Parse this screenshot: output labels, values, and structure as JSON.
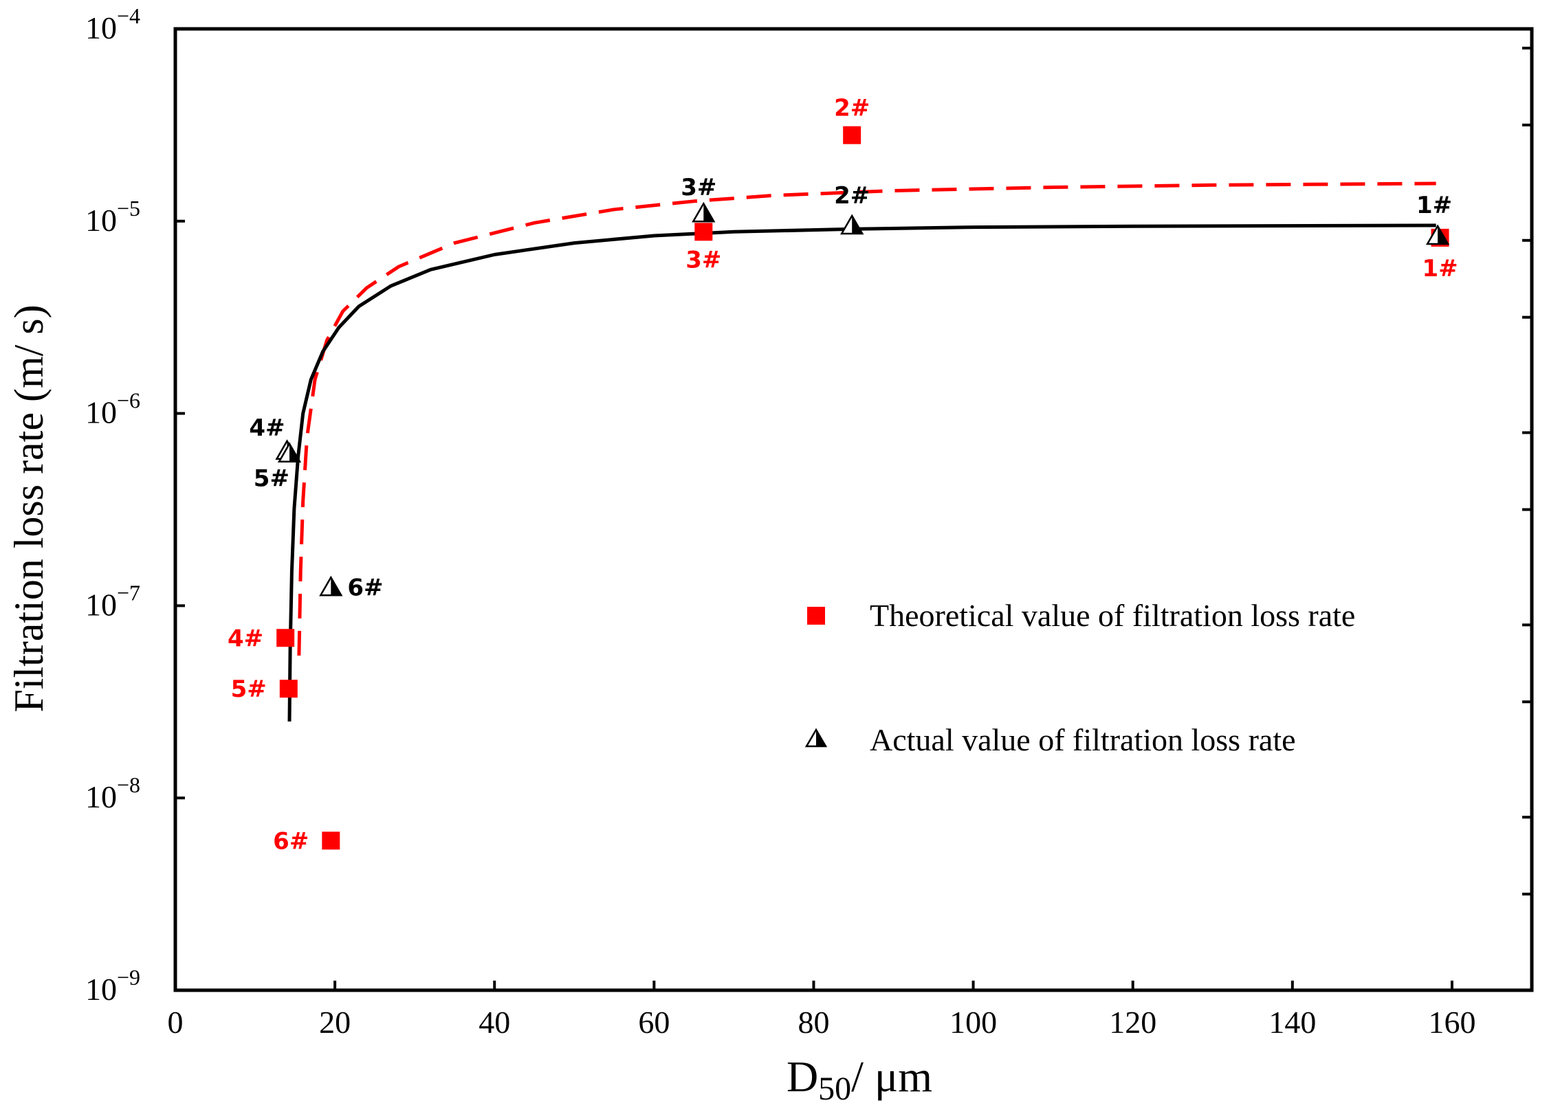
{
  "chart_data": {
    "type": "scatter",
    "title": "",
    "xlabel": "D50/ μm",
    "xlabel_main": "D",
    "xlabel_sub": "50",
    "xlabel_rest": "/ μm",
    "ylabel": "Filtration loss rate (m/ s)",
    "xlim": [
      0,
      170
    ],
    "ylim": [
      1e-09,
      0.0001
    ],
    "yscale": "log",
    "x_ticks": [
      0,
      20,
      40,
      60,
      80,
      100,
      120,
      140,
      160
    ],
    "x_tick_labels": [
      "0",
      "20",
      "40",
      "60",
      "80",
      "100",
      "120",
      "140",
      "160"
    ],
    "y_tick_labels": [
      {
        "base": "10",
        "exp": "−9"
      },
      {
        "base": "10",
        "exp": "−8"
      },
      {
        "base": "10",
        "exp": "−7"
      },
      {
        "base": "10",
        "exp": "−6"
      },
      {
        "base": "10",
        "exp": "−5"
      },
      {
        "base": "10",
        "exp": "−4"
      }
    ],
    "legend": {
      "position": "center-right",
      "entries": [
        "Theoretical value of filtration loss rate",
        "Actual value of filtration loss rate"
      ]
    },
    "series": [
      {
        "name": "Theoretical value of filtration loss rate",
        "marker": "square",
        "color": "#ff0000",
        "points": [
          {
            "label": "1#",
            "x": 158.5,
            "y": 8.2e-06
          },
          {
            "label": "2#",
            "x": 84.8,
            "y": 2.8e-05
          },
          {
            "label": "3#",
            "x": 66.2,
            "y": 8.8e-06
          },
          {
            "label": "4#",
            "x": 13.8,
            "y": 6.8e-08
          },
          {
            "label": "5#",
            "x": 14.2,
            "y": 3.7e-08
          },
          {
            "label": "6#",
            "x": 19.5,
            "y": 6e-09
          }
        ]
      },
      {
        "name": "Actual value of filtration loss rate",
        "marker": "half-filled-triangle",
        "color": "#000000",
        "points": [
          {
            "label": "1#",
            "x": 158.2,
            "y": 8.4e-06
          },
          {
            "label": "2#",
            "x": 84.8,
            "y": 9.5e-06
          },
          {
            "label": "3#",
            "x": 66.2,
            "y": 1.1e-05
          },
          {
            "label": "4#",
            "x": 14.0,
            "y": 6.4e-07
          },
          {
            "label": "5#",
            "x": 14.3,
            "y": 6.2e-07
          },
          {
            "label": "6#",
            "x": 19.5,
            "y": 1.25e-07
          }
        ]
      }
    ],
    "fit_curves": [
      {
        "name": "theoretical fit",
        "style": "dashed",
        "color": "#ff0000",
        "points": [
          [
            15.5,
            5.5e-08
          ],
          [
            15.7,
            1.5e-07
          ],
          [
            16.0,
            3.5e-07
          ],
          [
            16.5,
            7.5e-07
          ],
          [
            17.5,
            1.5e-06
          ],
          [
            19.0,
            2.4e-06
          ],
          [
            21.0,
            3.4e-06
          ],
          [
            24.0,
            4.5e-06
          ],
          [
            28.0,
            5.8e-06
          ],
          [
            35.0,
            7.7e-06
          ],
          [
            45.0,
            9.8e-06
          ],
          [
            55.0,
            1.15e-05
          ],
          [
            65.0,
            1.27e-05
          ],
          [
            75.0,
            1.36e-05
          ],
          [
            90.0,
            1.44e-05
          ],
          [
            110.0,
            1.5e-05
          ],
          [
            130.0,
            1.54e-05
          ],
          [
            158.0,
            1.57e-05
          ]
        ]
      },
      {
        "name": "actual fit",
        "style": "solid",
        "color": "#000000",
        "points": [
          [
            14.3,
            2.5e-08
          ],
          [
            14.4,
            6e-08
          ],
          [
            14.6,
            1.5e-07
          ],
          [
            14.9,
            3.2e-07
          ],
          [
            15.4,
            6e-07
          ],
          [
            16.0,
            1e-06
          ],
          [
            17.0,
            1.5e-06
          ],
          [
            18.5,
            2.1e-06
          ],
          [
            20.5,
            2.8e-06
          ],
          [
            23.0,
            3.6e-06
          ],
          [
            27.0,
            4.6e-06
          ],
          [
            32.0,
            5.6e-06
          ],
          [
            40.0,
            6.7e-06
          ],
          [
            50.0,
            7.7e-06
          ],
          [
            60.0,
            8.4e-06
          ],
          [
            70.0,
            8.8e-06
          ],
          [
            85.0,
            9.1e-06
          ],
          [
            100.0,
            9.3e-06
          ],
          [
            120.0,
            9.4e-06
          ],
          [
            158.0,
            9.5e-06
          ]
        ]
      }
    ]
  }
}
